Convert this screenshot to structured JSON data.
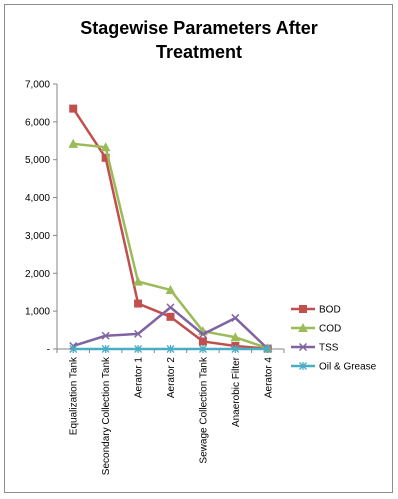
{
  "chart_data": {
    "type": "line",
    "title": "Stagewise Parameters After\nTreatment",
    "categories": [
      "Equalization Tank",
      "Secondary Collection Tank",
      "Aerator 1",
      "Aerator 2",
      "Sewage Collection Tank",
      "Anaerobic Filter",
      "Aerator 4"
    ],
    "y_ticks": [
      "-",
      "1,000",
      "2,000",
      "3,000",
      "4,000",
      "5,000",
      "6,000",
      "7,000"
    ],
    "ylim": [
      0,
      7000
    ],
    "grid": false,
    "legend_position": "right",
    "series": [
      {
        "name": "BOD",
        "color": "#c0504d",
        "marker": "square",
        "values": [
          6350,
          5050,
          1200,
          850,
          200,
          80,
          10
        ]
      },
      {
        "name": "COD",
        "color": "#9bbb59",
        "marker": "triangle",
        "values": [
          5420,
          5330,
          1780,
          1560,
          470,
          310,
          20
        ]
      },
      {
        "name": "TSS",
        "color": "#8064a2",
        "marker": "x",
        "values": [
          80,
          350,
          400,
          1100,
          390,
          820,
          5
        ]
      },
      {
        "name": "Oil & Grease",
        "color": "#4bacc6",
        "marker": "star",
        "values": [
          0,
          0,
          0,
          0,
          0,
          0,
          0
        ]
      }
    ]
  }
}
